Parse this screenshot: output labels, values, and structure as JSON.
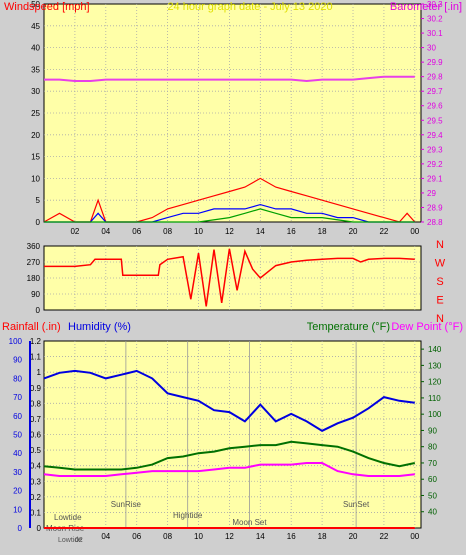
{
  "chart_data": [
    {
      "type": "line",
      "title": "24 hour graph date - July 13 2020",
      "ylabel_left": "Windspeed [mph]",
      "ylabel_right": "Barometer [.in]",
      "x_ticks": [
        "02",
        "04",
        "06",
        "08",
        "10",
        "12",
        "14",
        "16",
        "18",
        "20",
        "22",
        "00"
      ],
      "ylim_left": [
        0,
        50
      ],
      "y_ticks_left": [
        "0",
        "5",
        "10",
        "15",
        "20",
        "25",
        "30",
        "35",
        "40",
        "45",
        "50"
      ],
      "ylim_right": [
        28.8,
        30.3
      ],
      "y_ticks_right": [
        "28.8",
        "28.9",
        "29",
        "29.1",
        "29.2",
        "29.3",
        "29.4",
        "29.5",
        "29.6",
        "29.7",
        "29.8",
        "29.9",
        "30",
        "30.1",
        "30.2",
        "30.3"
      ],
      "series": [
        {
          "name": "barometer",
          "axis": "right",
          "color": "#e840e8",
          "x": [
            0,
            1,
            2,
            3,
            4,
            5,
            6,
            7,
            8,
            9,
            10,
            11,
            12,
            13,
            14,
            15,
            16,
            17,
            18,
            19,
            20,
            21,
            22,
            23,
            24
          ],
          "values": [
            29.78,
            29.78,
            29.77,
            29.77,
            29.78,
            29.78,
            29.78,
            29.78,
            29.78,
            29.78,
            29.78,
            29.78,
            29.78,
            29.78,
            29.78,
            29.78,
            29.78,
            29.77,
            29.78,
            29.78,
            29.78,
            29.79,
            29.8,
            29.8,
            29.8
          ]
        },
        {
          "name": "gust",
          "axis": "left",
          "color": "#ff0000",
          "x": [
            0,
            1,
            2,
            3,
            3.5,
            4,
            5,
            6,
            7,
            8,
            9,
            10,
            11,
            12,
            13,
            14,
            15,
            16,
            17,
            18,
            19,
            20,
            21,
            22,
            23,
            23.5,
            24
          ],
          "values": [
            0,
            2,
            0,
            0,
            5,
            0,
            0,
            0,
            1,
            3,
            4,
            5,
            6,
            7,
            8,
            10,
            8,
            7,
            6,
            5,
            4,
            3,
            2,
            1,
            0,
            2,
            0
          ]
        },
        {
          "name": "windspeed",
          "axis": "left",
          "color": "#0000ff",
          "x": [
            0,
            1,
            2,
            3,
            3.5,
            4,
            5,
            6,
            7,
            8,
            9,
            10,
            11,
            12,
            13,
            14,
            15,
            16,
            17,
            18,
            19,
            20,
            21,
            22,
            23,
            24
          ],
          "values": [
            0,
            0,
            0,
            0,
            2,
            0,
            0,
            0,
            0,
            1,
            2,
            2,
            3,
            3,
            3,
            4,
            3,
            3,
            2,
            2,
            1,
            1,
            0,
            0,
            0,
            0
          ]
        },
        {
          "name": "avg",
          "axis": "left",
          "color": "#00a000",
          "x": [
            0,
            8,
            10,
            12,
            13,
            14,
            15,
            16,
            18,
            20,
            24
          ],
          "values": [
            0,
            0,
            0,
            1,
            2,
            3,
            2,
            1,
            1,
            0,
            0
          ]
        }
      ]
    },
    {
      "type": "line",
      "ylim": [
        0,
        360
      ],
      "y_ticks": [
        "0",
        "90",
        "180",
        "270",
        "360"
      ],
      "compass_labels": [
        "N",
        "W",
        "S",
        "E",
        "N"
      ],
      "x": [
        0,
        1,
        2,
        3,
        3.3,
        4,
        5,
        5.1,
        6,
        7,
        7.4,
        7.5,
        8,
        9,
        9.5,
        10,
        10.5,
        11,
        11.5,
        12,
        12.5,
        13,
        13.5,
        14,
        15,
        16,
        17,
        18,
        19,
        20,
        20.5,
        21,
        22,
        23,
        24
      ],
      "values": [
        245,
        245,
        245,
        255,
        285,
        285,
        285,
        195,
        195,
        195,
        195,
        255,
        285,
        300,
        60,
        320,
        20,
        340,
        40,
        345,
        110,
        330,
        230,
        180,
        250,
        270,
        280,
        285,
        290,
        290,
        270,
        285,
        290,
        290,
        285
      ],
      "color": "#ff0000"
    },
    {
      "type": "line",
      "ylabel_left": "Rainfall (.in)",
      "ylabel_left2": "Humidity (%)",
      "ylabel_right": "Temperature (°F)",
      "ylabel_right2": "Dew Point (°F)",
      "ylim_rain": [
        0,
        1.2
      ],
      "y_ticks_rain": [
        "0",
        "0.1",
        "0.2",
        "0.3",
        "0.4",
        "0.5",
        "0.6",
        "0.7",
        "0.8",
        "0.9",
        "1",
        "1.1",
        "1.2"
      ],
      "ylim_humidity": [
        0,
        100
      ],
      "y_ticks_humidity": [
        "0",
        "10",
        "20",
        "30",
        "40",
        "50",
        "60",
        "70",
        "80",
        "90",
        "100"
      ],
      "ylim_temp": [
        30,
        145
      ],
      "y_ticks_temp": [
        "40",
        "50",
        "60",
        "70",
        "80",
        "90",
        "100",
        "110",
        "120",
        "130",
        "140"
      ],
      "annotations": [
        "Lowtide",
        "SunRise",
        "Hightide",
        "Moon Rise",
        "Moon Set",
        "SunSet",
        "Lowtide",
        "02"
      ],
      "series": [
        {
          "name": "Humidity",
          "color": "#0000e0",
          "x": [
            0,
            1,
            2,
            3,
            4,
            5,
            6,
            7,
            8,
            9,
            10,
            11,
            12,
            13,
            14,
            15,
            16,
            17,
            18,
            19,
            20,
            21,
            22,
            23,
            24
          ],
          "values": [
            80,
            83,
            84,
            83,
            80,
            82,
            84,
            80,
            72,
            70,
            68,
            63,
            62,
            57,
            66,
            57,
            61,
            57,
            52,
            56,
            59,
            64,
            70,
            68,
            67
          ]
        },
        {
          "name": "Temperature",
          "color": "#007000",
          "x": [
            0,
            1,
            2,
            3,
            4,
            5,
            6,
            7,
            8,
            9,
            10,
            11,
            12,
            13,
            14,
            15,
            16,
            17,
            18,
            19,
            20,
            21,
            22,
            23,
            24
          ],
          "values": [
            68,
            67,
            66,
            66,
            66,
            66,
            67,
            69,
            73,
            74,
            76,
            77,
            79,
            80,
            81,
            81,
            83,
            82,
            81,
            80,
            77,
            73,
            70,
            68,
            70
          ]
        },
        {
          "name": "Dew Point",
          "color": "#ff00ff",
          "x": [
            0,
            1,
            2,
            3,
            4,
            5,
            6,
            7,
            8,
            9,
            10,
            11,
            12,
            13,
            14,
            15,
            16,
            17,
            18,
            19,
            20,
            21,
            22,
            23,
            24
          ],
          "values": [
            63,
            62,
            62,
            62,
            62,
            63,
            64,
            65,
            65,
            65,
            65,
            66,
            67,
            67,
            69,
            69,
            69,
            70,
            70,
            65,
            63,
            62,
            62,
            62,
            63
          ]
        },
        {
          "name": "Rainfall",
          "color": "#ff0000",
          "x": [
            0,
            24
          ],
          "values": [
            0,
            0
          ]
        }
      ]
    }
  ]
}
